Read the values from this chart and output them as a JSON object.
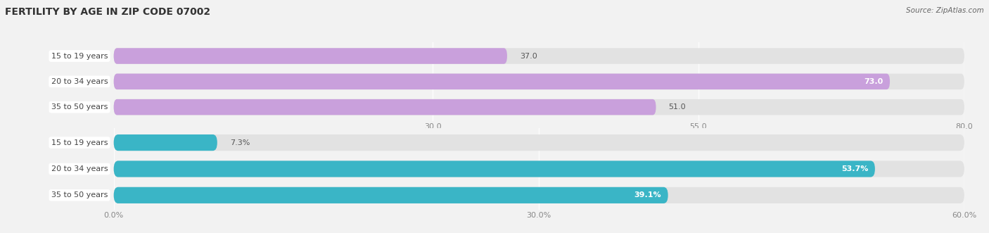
{
  "title": "Fertility by Age in Zip Code 07002",
  "title_display": "FERTILITY BY AGE IN ZIP CODE 07002",
  "source": "Source: ZipAtlas.com",
  "top_chart": {
    "categories": [
      "15 to 19 years",
      "20 to 34 years",
      "35 to 50 years"
    ],
    "values": [
      37.0,
      73.0,
      51.0
    ],
    "labels": [
      "37.0",
      "73.0",
      "51.0"
    ],
    "bar_color": "#c9a0dc",
    "xlim": [
      0,
      80
    ],
    "xticks": [
      30.0,
      55.0,
      80.0
    ],
    "xtick_labels": [
      "30.0",
      "55.0",
      "80.0"
    ],
    "label_inside_threshold": 60,
    "bar_height": 0.62
  },
  "bottom_chart": {
    "categories": [
      "15 to 19 years",
      "20 to 34 years",
      "35 to 50 years"
    ],
    "values": [
      7.3,
      53.7,
      39.1
    ],
    "labels": [
      "7.3%",
      "53.7%",
      "39.1%"
    ],
    "bar_color": "#3ab5c6",
    "xlim": [
      0,
      60
    ],
    "xticks": [
      0.0,
      30.0,
      60.0
    ],
    "xtick_labels": [
      "0.0%",
      "30.0%",
      "60.0%"
    ],
    "label_inside_threshold": 20,
    "bar_height": 0.62
  },
  "bg_color": "#f2f2f2",
  "bar_bg_color": "#e2e2e2",
  "label_bg_color": "#ffffff",
  "title_fontsize": 10,
  "label_fontsize": 8,
  "value_fontsize": 8,
  "tick_fontsize": 8,
  "source_fontsize": 7.5,
  "cat_label_color": "#444444",
  "tick_color": "#888888",
  "value_outside_color": "#555555"
}
